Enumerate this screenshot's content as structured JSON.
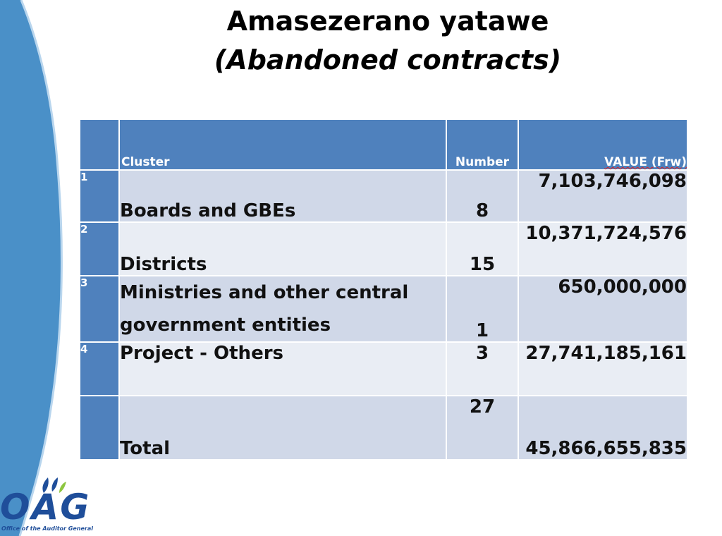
{
  "slide": {
    "title": "Amasezerano yatawe",
    "subtitle": "(Abandoned contracts)"
  },
  "table": {
    "headers": {
      "index": "",
      "cluster": "Cluster",
      "number": "Number",
      "value": "VALUE (Frw)"
    },
    "rows": [
      {
        "index": "1",
        "cluster": "Boards and GBEs",
        "number": "8",
        "value": "7,103,746,098"
      },
      {
        "index": "2",
        "cluster": "Districts",
        "number": "15",
        "value": "10,371,724,576"
      },
      {
        "index": "3",
        "cluster_line1": "Ministries and other central",
        "cluster_line2": "government entities",
        "number": "1",
        "value": "650,000,000"
      },
      {
        "index": "4",
        "cluster": "Project - Others",
        "number": "3",
        "value": "27,741,185,161"
      }
    ],
    "total": {
      "label": "Total",
      "number": "27",
      "value": "45,866,655,835"
    }
  },
  "logo": {
    "text": "OAG",
    "tagline": "Office of the Auditor General"
  },
  "colors": {
    "header": "#4f81bd",
    "row_dark": "#d0d8e8",
    "row_light": "#e9edf4",
    "side_shape": "#4a90c8"
  }
}
